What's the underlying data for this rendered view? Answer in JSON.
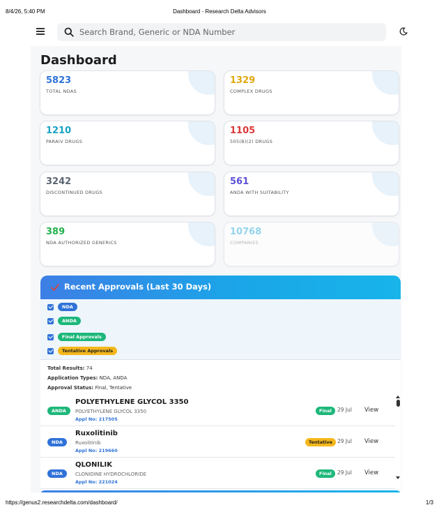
{
  "print": {
    "datetime": "8/4/26, 5:40 PM",
    "page_title": "Dashboard - Research Delta Advisors",
    "url": "https://genus2.researchdelta.com/dashboard/",
    "page_number": "1/3"
  },
  "topbar": {
    "search_placeholder": "Search Brand, Generic or NDA Number"
  },
  "dashboard": {
    "title": "Dashboard",
    "cards": [
      {
        "value": "5823",
        "label": "TOTAL NDAS",
        "color": "#2f72d8"
      },
      {
        "value": "1329",
        "label": "COMPLEX DRUGS",
        "color": "#e0a80e"
      },
      {
        "value": "1210",
        "label": "PARAIV DRUGS",
        "color": "#17a2c4"
      },
      {
        "value": "1105",
        "label": "505(B)(2) DRUGS",
        "color": "#dc3838"
      },
      {
        "value": "3242",
        "label": "DISCONTINUED DRUGS",
        "color": "#5c6570"
      },
      {
        "value": "561",
        "label": "ANDA WITH SUITABILITY",
        "color": "#5b4fd6"
      },
      {
        "value": "389",
        "label": "NDA AUTHORIZED GENERICS",
        "color": "#22b24c"
      },
      {
        "value": "10768",
        "label": "COMPANIES",
        "color": "#6bc6e6"
      }
    ]
  },
  "approvals": {
    "title": "Recent Approvals (Last 30 Days)",
    "filters": [
      "NDA",
      "ANDA",
      "Final Approvals",
      "Tentative Approvals"
    ],
    "summary": {
      "total_label": "Total Results:",
      "total_value": "74",
      "types_label": "Application Types:",
      "types_value": "NDA, ANDA",
      "status_label": "Approval Status:",
      "status_value": "Final, Tentative"
    },
    "rows": [
      {
        "type": "ANDA",
        "name": "POLYETHYLENE GLYCOL 3350",
        "generic": "POLYETHYLENE GLYCOL 3350",
        "appl": "Appl No: 217505",
        "status": "Final",
        "date": "29 Jul",
        "action": "View"
      },
      {
        "type": "NDA",
        "name": "Ruxolitinib",
        "generic": "Ruxolitinib",
        "appl": "Appl No: 219660",
        "status": "Tentative",
        "date": "29 Jul",
        "action": "View"
      },
      {
        "type": "NDA",
        "name": "QLONILIK",
        "generic": "CLONIDINE HYDROCHLORIDE",
        "appl": "Appl No: 221024",
        "status": "Final",
        "date": "29 Jul",
        "action": "View"
      }
    ]
  },
  "icons": {
    "menu": "hamburger-icon",
    "search": "search-icon",
    "theme": "moon-icon",
    "approvals": "check-icon"
  }
}
